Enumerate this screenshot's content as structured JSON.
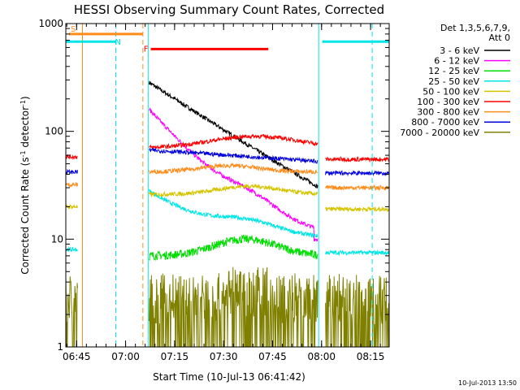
{
  "chart_data": {
    "type": "line",
    "title": "HESSI Observing Summary Count Rates, Corrected",
    "xlabel": "Start Time (10-Jul-13 06:41:42)",
    "ylabel": "Corrected Count Rate (s",
    "ylabel_sup1": "-1",
    "ylabel_mid": " detector",
    "ylabel_sup2": "-1",
    "ylabel_end": ")",
    "y_scale": "log",
    "ylim": [
      1,
      1000
    ],
    "xlim_minutes": [
      0,
      99
    ],
    "x_ticks": [
      {
        "minute": 3.3,
        "label": "06:45"
      },
      {
        "minute": 18.3,
        "label": "07:00"
      },
      {
        "minute": 33.3,
        "label": "07:15"
      },
      {
        "minute": 48.3,
        "label": "07:30"
      },
      {
        "minute": 63.3,
        "label": "07:45"
      },
      {
        "minute": 78.3,
        "label": "08:00"
      },
      {
        "minute": 93.3,
        "label": "08:15"
      }
    ],
    "y_ticks": [
      {
        "value": 1,
        "label": "1"
      },
      {
        "value": 10,
        "label": "10"
      },
      {
        "value": 100,
        "label": "100"
      },
      {
        "value": 1000,
        "label": "1000"
      }
    ],
    "legend_header_1": "Det 1,3,5,6,7,9,",
    "legend_header_2": "Att 0",
    "legend_position": "right",
    "stamp": "10-Jul-2013 13:50",
    "series": [
      {
        "name": "3 - 6 keV",
        "color": "#000000",
        "level": "black"
      },
      {
        "name": "6 - 12 keV",
        "color": "#ff00ff",
        "level": "magenta"
      },
      {
        "name": "12 - 25 keV",
        "color": "#00dd00",
        "level": "green"
      },
      {
        "name": "25 - 50 keV",
        "color": "#00e5e5",
        "level": "cyan"
      },
      {
        "name": "50 - 100 keV",
        "color": "#d4c400",
        "level": "yellow"
      },
      {
        "name": "100 - 300 keV",
        "color": "#ff0000",
        "level": "red"
      },
      {
        "name": "300 - 800 keV",
        "color": "#ff8c1a",
        "level": "orange"
      },
      {
        "name": "800 - 7000 keV",
        "color": "#0000dd",
        "level": "blue"
      },
      {
        "name": "7000 - 20000 keV",
        "color": "#808000",
        "level": "olive"
      }
    ],
    "segments": [
      {
        "from": 0,
        "to": 3.7
      },
      {
        "from": 25.5,
        "to": 77.2
      },
      {
        "from": 79.5,
        "to": 99
      }
    ],
    "flags": [
      {
        "label": "S",
        "color": "#ff8c1a",
        "value": 800,
        "from": 1.0,
        "to": 23.5
      },
      {
        "label": "N",
        "color": "#00e5e5",
        "value": 680,
        "from": -2,
        "to": 15.3
      },
      {
        "label": "F",
        "color": "#ff0000",
        "value": 580,
        "from": 26.0,
        "to": 62.0
      },
      {
        "label": "",
        "color": "#00e5e5",
        "value": 680,
        "from": 78.5,
        "to": 99
      }
    ],
    "vertical_markers": [
      {
        "minute": 5.1,
        "color": "#ff8c1a",
        "style": "solid"
      },
      {
        "minute": 15.3,
        "color": "#00e5e5",
        "style": "dashed"
      },
      {
        "minute": 23.6,
        "color": "#ff8c1a",
        "style": "dashed"
      },
      {
        "minute": 25.2,
        "color": "#00e5e5",
        "style": "solid"
      },
      {
        "minute": 77.4,
        "color": "#00e5e5",
        "style": "solid"
      },
      {
        "minute": 93.8,
        "color": "#00e5e5",
        "style": "dashed"
      }
    ]
  }
}
